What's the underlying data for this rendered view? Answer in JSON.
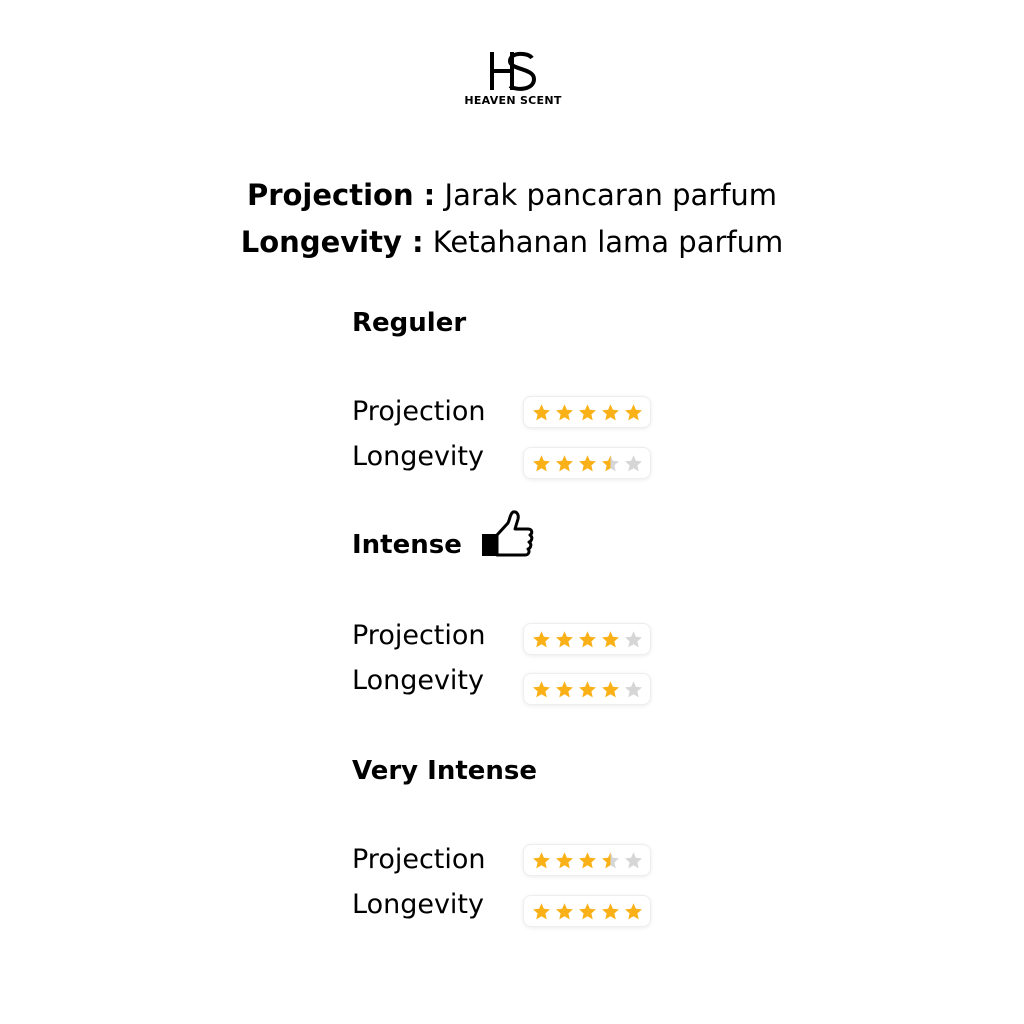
{
  "brand": {
    "monogram": "HS",
    "name": "HEAVEN SCENT"
  },
  "definitions": [
    {
      "term": "Projection :",
      "meaning": "Jarak pancaran parfum"
    },
    {
      "term": "Longevity :",
      "meaning": "Ketahanan lama parfum"
    }
  ],
  "colors": {
    "star_filled": "#F9B117",
    "star_empty": "#D6D6D6"
  },
  "sections": [
    {
      "title": "Reguler",
      "icon": null,
      "ratings": [
        {
          "label": "Projection",
          "value": 5,
          "max": 5
        },
        {
          "label": "Longevity",
          "value": 3.5,
          "max": 5
        }
      ]
    },
    {
      "title": "Intense",
      "icon": "thumbs-up-icon",
      "ratings": [
        {
          "label": "Projection",
          "value": 4,
          "max": 5
        },
        {
          "label": "Longevity",
          "value": 4,
          "max": 5
        }
      ]
    },
    {
      "title": "Very Intense",
      "icon": null,
      "ratings": [
        {
          "label": "Projection",
          "value": 3.5,
          "max": 5
        },
        {
          "label": "Longevity",
          "value": 5,
          "max": 5
        }
      ]
    }
  ]
}
